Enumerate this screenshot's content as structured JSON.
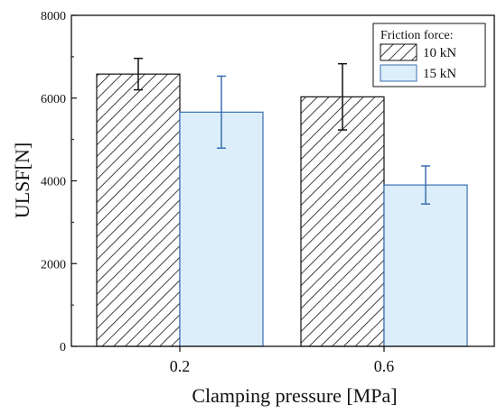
{
  "chart_data": {
    "type": "bar",
    "title": "",
    "xlabel": "Clamping pressure [MPa]",
    "ylabel": "ULSF[N]",
    "categories": [
      "0.2",
      "0.6"
    ],
    "ylim": [
      0,
      8000
    ],
    "yticks": [
      0,
      2000,
      4000,
      6000,
      8000
    ],
    "grid": false,
    "legend": {
      "title": "Friction force:",
      "placement": "top-right"
    },
    "series": [
      {
        "name": "10 kN",
        "values": [
          6580,
          6030
        ],
        "errors": [
          380,
          800
        ],
        "fill": "hatched",
        "color": "#111111",
        "error_color": "#111111"
      },
      {
        "name": "15 kN",
        "values": [
          5660,
          3900
        ],
        "errors": [
          870,
          460
        ],
        "fill": "solid",
        "color": "#dceefa",
        "error_color": "#3a6fb2"
      }
    ]
  }
}
